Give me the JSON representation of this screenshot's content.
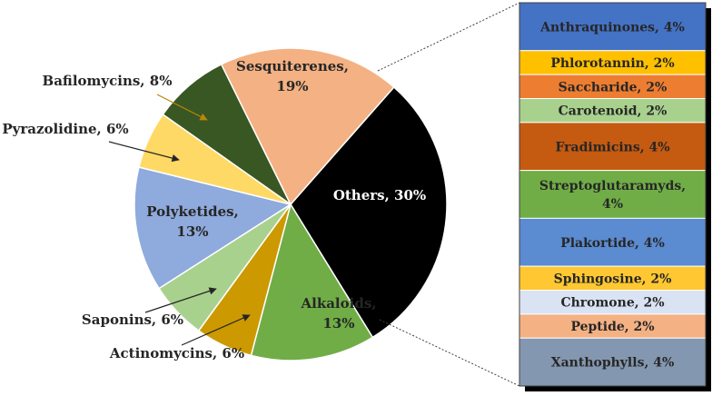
{
  "chart_data": [
    {
      "type": "pie",
      "slices": [
        {
          "label": "Others",
          "value": 30,
          "text": [
            "Others, 30%"
          ],
          "color": "#000000"
        },
        {
          "label": "Alkaloids",
          "value": 13,
          "text": [
            "Alkaloids,",
            "13%"
          ],
          "color": "#70AD47"
        },
        {
          "label": "Actinomycins",
          "value": 6,
          "text": [
            "Actinomycins, 6%"
          ],
          "color": "#CC9900"
        },
        {
          "label": "Saponins",
          "value": 6,
          "text": [
            "Saponins, 6%"
          ],
          "color": "#A9D18E"
        },
        {
          "label": "Polyketides",
          "value": 13,
          "text": [
            "Polyketides,",
            "13%"
          ],
          "color": "#8FAADC"
        },
        {
          "label": "Pyrazolidine",
          "value": 6,
          "text": [
            "Pyrazolidine, 6%"
          ],
          "color": "#FFD966"
        },
        {
          "label": "Bafilomycins",
          "value": 8,
          "text": [
            "Bafilomycins, 8%"
          ],
          "color": "#385723"
        },
        {
          "label": "Sesquiterenes",
          "value": 19,
          "text": [
            "Sesquiterenes,",
            "19%"
          ],
          "color": "#F4B183"
        }
      ]
    },
    {
      "type": "bar",
      "orientation": "stacked-vertical",
      "items": [
        {
          "label": "Anthraquinones",
          "value": 4,
          "text": [
            "Anthraquinones, 4%"
          ],
          "color": "#4472C4"
        },
        {
          "label": "Phlorotannin",
          "value": 2,
          "text": [
            "Phlorotannin, 2%"
          ],
          "color": "#FFC000"
        },
        {
          "label": "Saccharide",
          "value": 2,
          "text": [
            "Saccharide, 2%"
          ],
          "color": "#ED7D31"
        },
        {
          "label": "Carotenoid",
          "value": 2,
          "text": [
            "Carotenoid, 2%"
          ],
          "color": "#A9D18E"
        },
        {
          "label": "Fradimicins",
          "value": 4,
          "text": [
            "Fradimicins, 4%"
          ],
          "color": "#C55A11"
        },
        {
          "label": "Streptoglutaramyds",
          "value": 4,
          "text": [
            "Streptoglutaramyds,",
            "4%"
          ],
          "color": "#70AD47"
        },
        {
          "label": "Plakortide",
          "value": 4,
          "text": [
            "Plakortide, 4%"
          ],
          "color": "#5B8BD0"
        },
        {
          "label": "Sphingosine",
          "value": 2,
          "text": [
            "Sphingosine, 2%"
          ],
          "color": "#FFC832"
        },
        {
          "label": "Chromone",
          "value": 2,
          "text": [
            "Chromone, 2%"
          ],
          "color": "#DAE3F3"
        },
        {
          "label": "Peptide",
          "value": 2,
          "text": [
            "Peptide, 2%"
          ],
          "color": "#F4B183"
        },
        {
          "label": "Xanthophylls",
          "value": 4,
          "text": [
            "Xanthophylls, 4%"
          ],
          "color": "#8497B0"
        }
      ]
    }
  ]
}
